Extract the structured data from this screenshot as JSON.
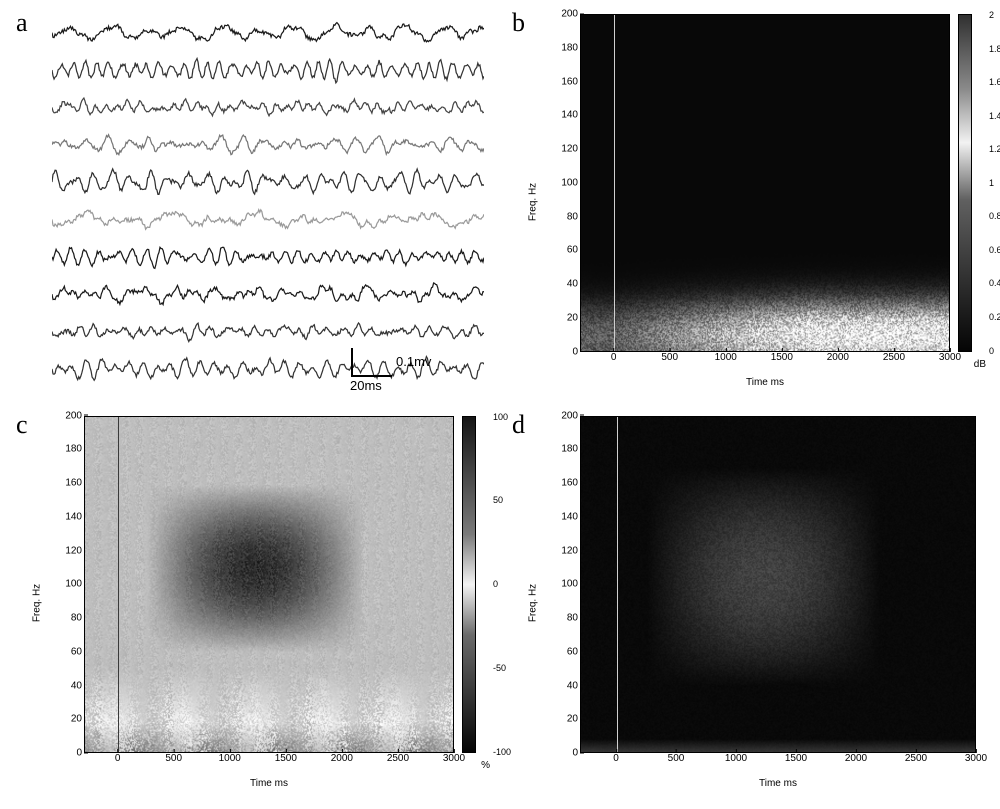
{
  "figure": {
    "panels": [
      "a",
      "b",
      "c",
      "d"
    ],
    "panel_letter_fontsize": 26,
    "panel_letter_fontfamily": "Times New Roman"
  },
  "panel_a": {
    "type": "waveform-traces",
    "n_traces": 10,
    "trace_colors": [
      "#1a1a1a",
      "#333333",
      "#444444",
      "#777777",
      "#2f2f2f",
      "#9a9a9a",
      "#1a1a1a",
      "#1a1a1a",
      "#333333",
      "#333333"
    ],
    "line_width": 1.2,
    "samples_per_trace": 420,
    "amplitude_rel": 0.38,
    "noise_seed": 17,
    "scalebar": {
      "horiz_value": "20ms",
      "vert_value": "0.1mv",
      "font_size": 13,
      "line_color": "#000000",
      "line_width": 2
    }
  },
  "panel_b": {
    "type": "spectrogram",
    "ylabel": "Freq. Hz",
    "xlabel": "Time ms",
    "xlim": [
      -300,
      3000
    ],
    "ylim": [
      0,
      200
    ],
    "yticks": [
      0,
      20,
      40,
      60,
      80,
      100,
      120,
      140,
      160,
      180,
      200
    ],
    "xticks": [
      0,
      500,
      1000,
      1500,
      2000,
      2500,
      3000
    ],
    "tick_fontsize": 10,
    "label_fontsize": 10,
    "t_zero_line_color": "#cfcfcf",
    "background_color": "#050505",
    "band": {
      "freq_center": 10,
      "freq_spread": 14,
      "intensity": 1.0,
      "bright_color": "#f5f5f5"
    },
    "colorbar": {
      "min": 0,
      "max": 2,
      "ticks": [
        0,
        0.2,
        0.4,
        0.6,
        0.8,
        1,
        1.2,
        1.4,
        1.6,
        1.8,
        2
      ],
      "label": "dB",
      "gradient_stops": [
        {
          "p": 0.0,
          "c": "#050505"
        },
        {
          "p": 0.45,
          "c": "#606060"
        },
        {
          "p": 0.62,
          "c": "#f2f2f2"
        },
        {
          "p": 0.78,
          "c": "#8a8a8a"
        },
        {
          "p": 1.0,
          "c": "#303030"
        }
      ]
    }
  },
  "panel_c": {
    "type": "spectrogram",
    "ylabel": "Freq. Hz",
    "xlabel": "Time ms",
    "xlim": [
      -300,
      3000
    ],
    "ylim": [
      0,
      200
    ],
    "yticks": [
      0,
      20,
      40,
      60,
      80,
      100,
      120,
      140,
      160,
      180,
      200
    ],
    "xticks": [
      0,
      500,
      1000,
      1500,
      2000,
      2500,
      3000
    ],
    "tick_fontsize": 10,
    "label_fontsize": 10,
    "t_zero_line_color": "#3a3a3a",
    "background_color": "#c7c7c7",
    "blob": {
      "t_start": 250,
      "t_end": 2200,
      "f_low": 60,
      "f_high": 160,
      "dark_color": "#2a2a2a"
    },
    "low_band": {
      "f_low": 0,
      "f_high": 50,
      "light_color": "#efefef"
    },
    "colorbar": {
      "min": -100,
      "max": 100,
      "ticks": [
        -100,
        -50,
        0,
        50,
        100
      ],
      "label": "%",
      "gradient_stops": [
        {
          "p": 0.0,
          "c": "#050505"
        },
        {
          "p": 0.35,
          "c": "#6b6b6b"
        },
        {
          "p": 0.5,
          "c": "#f3f3f3"
        },
        {
          "p": 0.65,
          "c": "#7a7a7a"
        },
        {
          "p": 1.0,
          "c": "#151515"
        }
      ]
    }
  },
  "panel_d": {
    "type": "spectrogram",
    "ylabel": "Freq. Hz",
    "xlabel": "Time ms",
    "xlim": [
      -300,
      3000
    ],
    "ylim": [
      0,
      200
    ],
    "yticks": [
      0,
      20,
      40,
      60,
      80,
      100,
      120,
      140,
      160,
      180,
      200
    ],
    "xticks": [
      0,
      500,
      1000,
      1500,
      2000,
      2500,
      3000
    ],
    "tick_fontsize": 10,
    "label_fontsize": 10,
    "t_zero_line_color": "#d0d0d0",
    "background_color": "#050505",
    "blob": {
      "t_start": 250,
      "t_end": 2200,
      "f_low": 40,
      "f_high": 170,
      "mid_color": "#3d3d3d"
    },
    "colorbar": null
  }
}
